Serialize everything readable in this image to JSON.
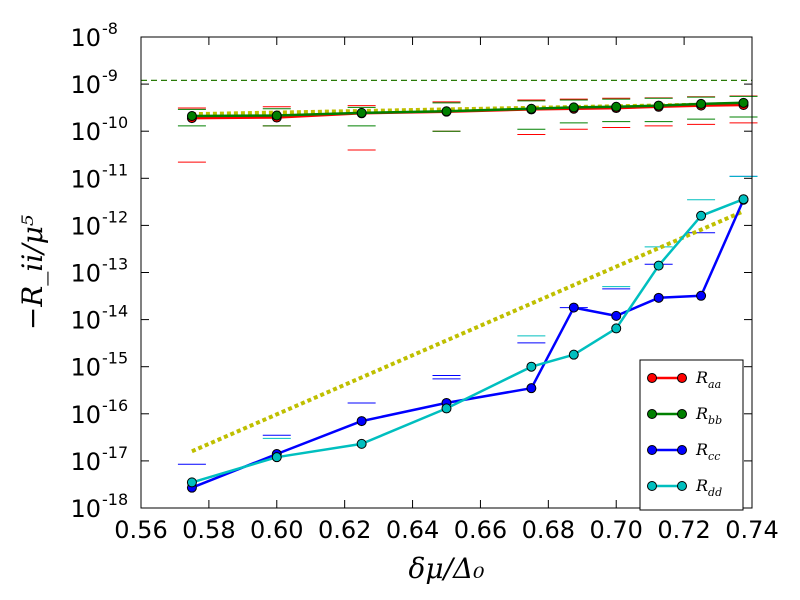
{
  "chart_data": {
    "type": "line",
    "yscale": "log",
    "xlabel": "δμ/Δ₀",
    "ylabel": "−R_ii/μ⁵",
    "xlim": [
      0.56,
      0.74
    ],
    "ylim": [
      1e-18,
      1e-08
    ],
    "x_ticks": [
      "0.56",
      "0.58",
      "0.60",
      "0.62",
      "0.64",
      "0.66",
      "0.68",
      "0.70",
      "0.72",
      "0.74"
    ],
    "y_ticks": [
      {
        "base": "10",
        "exp": "-8",
        "value": 1e-08
      },
      {
        "base": "10",
        "exp": "-9",
        "value": 1e-09
      },
      {
        "base": "10",
        "exp": "-10",
        "value": 1e-10
      },
      {
        "base": "10",
        "exp": "-11",
        "value": 1e-11
      },
      {
        "base": "10",
        "exp": "-12",
        "value": 1e-12
      },
      {
        "base": "10",
        "exp": "-13",
        "value": 1e-13
      },
      {
        "base": "10",
        "exp": "-14",
        "value": 1e-14
      },
      {
        "base": "10",
        "exp": "-15",
        "value": 1e-15
      },
      {
        "base": "10",
        "exp": "-16",
        "value": 1e-16
      },
      {
        "base": "10",
        "exp": "-17",
        "value": 1e-17
      },
      {
        "base": "10",
        "exp": "-18",
        "value": 1e-18
      }
    ],
    "grid": false,
    "legend_position": "lower-right",
    "horizontal_line": {
      "value": 1.2e-09,
      "color": "#2a7a0a",
      "style": "dashed"
    },
    "series": [
      {
        "name": "R_aa",
        "label_main": "R",
        "label_sub": "aa",
        "color": "#ff0000",
        "x": [
          0.575,
          0.6,
          0.625,
          0.65,
          0.675,
          0.6875,
          0.7,
          0.7125,
          0.725,
          0.7375
        ],
        "y": [
          1.9e-10,
          1.95e-10,
          2.4e-10,
          2.6e-10,
          2.9e-10,
          3e-10,
          3.1e-10,
          3.3e-10,
          3.5e-10,
          3.6e-10
        ],
        "err_hi": [
          3.1e-10,
          3.3e-10,
          3.5e-10,
          4.2e-10,
          4.6e-10,
          4.8e-10,
          5e-10,
          5.1e-10,
          5.4e-10,
          5.6e-10
        ],
        "err_lo": [
          2.2e-11,
          1.3e-10,
          4e-11,
          1e-10,
          8.5e-11,
          1.1e-10,
          1.2e-10,
          1.3e-10,
          1.4e-10,
          1.5e-10
        ]
      },
      {
        "name": "R_bb",
        "label_main": "R",
        "label_sub": "bb",
        "color": "#008000",
        "x": [
          0.575,
          0.6,
          0.625,
          0.65,
          0.675,
          0.6875,
          0.7,
          0.7125,
          0.725,
          0.7375
        ],
        "y": [
          2.1e-10,
          2.15e-10,
          2.45e-10,
          2.65e-10,
          3e-10,
          3.2e-10,
          3.3e-10,
          3.5e-10,
          3.8e-10,
          4e-10
        ],
        "err_hi": [
          2.9e-10,
          3e-10,
          3.2e-10,
          4e-10,
          4.4e-10,
          4.6e-10,
          4.8e-10,
          5e-10,
          5.3e-10,
          5.5e-10
        ],
        "err_lo": [
          1.3e-10,
          1.3e-10,
          1.3e-10,
          1e-10,
          1.1e-10,
          1.5e-10,
          1.6e-10,
          1.6e-10,
          1.8e-10,
          2e-10
        ]
      },
      {
        "name": "R_cc",
        "label_main": "R",
        "label_sub": "cc",
        "color": "#0000ff",
        "x": [
          0.575,
          0.6,
          0.625,
          0.65,
          0.675,
          0.6875,
          0.7,
          0.7125,
          0.725,
          0.7375
        ],
        "y": [
          2.7e-18,
          1.4e-17,
          7e-17,
          1.7e-16,
          3.5e-16,
          1.8e-14,
          1.2e-14,
          2.9e-14,
          3.2e-14,
          3.5e-12
        ],
        "err_hi": [
          8.5e-18,
          3.5e-17,
          1.7e-16,
          6.5e-16,
          3.2e-15,
          1.8e-14,
          4.5e-14,
          1.5e-13,
          7e-13,
          1.1e-11
        ],
        "err_lo": [
          null,
          null,
          null,
          5.5e-16,
          null,
          null,
          null,
          null,
          null,
          null
        ]
      },
      {
        "name": "R_dd",
        "label_main": "R",
        "label_sub": "dd",
        "color": "#00bfbf",
        "x": [
          0.575,
          0.6,
          0.625,
          0.65,
          0.675,
          0.6875,
          0.7,
          0.7125,
          0.725,
          0.7375
        ],
        "y": [
          3.5e-18,
          1.2e-17,
          2.3e-17,
          1.3e-16,
          1e-15,
          1.8e-15,
          6.5e-15,
          1.4e-13,
          1.6e-12,
          3.6e-12
        ],
        "err_hi": [
          null,
          3e-17,
          null,
          null,
          4.5e-15,
          null,
          5e-14,
          3.5e-13,
          3.5e-12,
          1.1e-11
        ],
        "err_lo": [
          null,
          null,
          null,
          null,
          null,
          null,
          null,
          null,
          null,
          null
        ]
      }
    ],
    "fit_lines": [
      {
        "color": "#bfbf00",
        "style": "dotted-thick",
        "x": [
          0.575,
          0.7375
        ],
        "y": [
          1.6e-17,
          2e-12
        ]
      },
      {
        "color": "#bfbf00",
        "style": "dotted-thick",
        "x": [
          0.575,
          0.7375
        ],
        "y": [
          2.3e-10,
          3.8e-10
        ]
      }
    ]
  }
}
